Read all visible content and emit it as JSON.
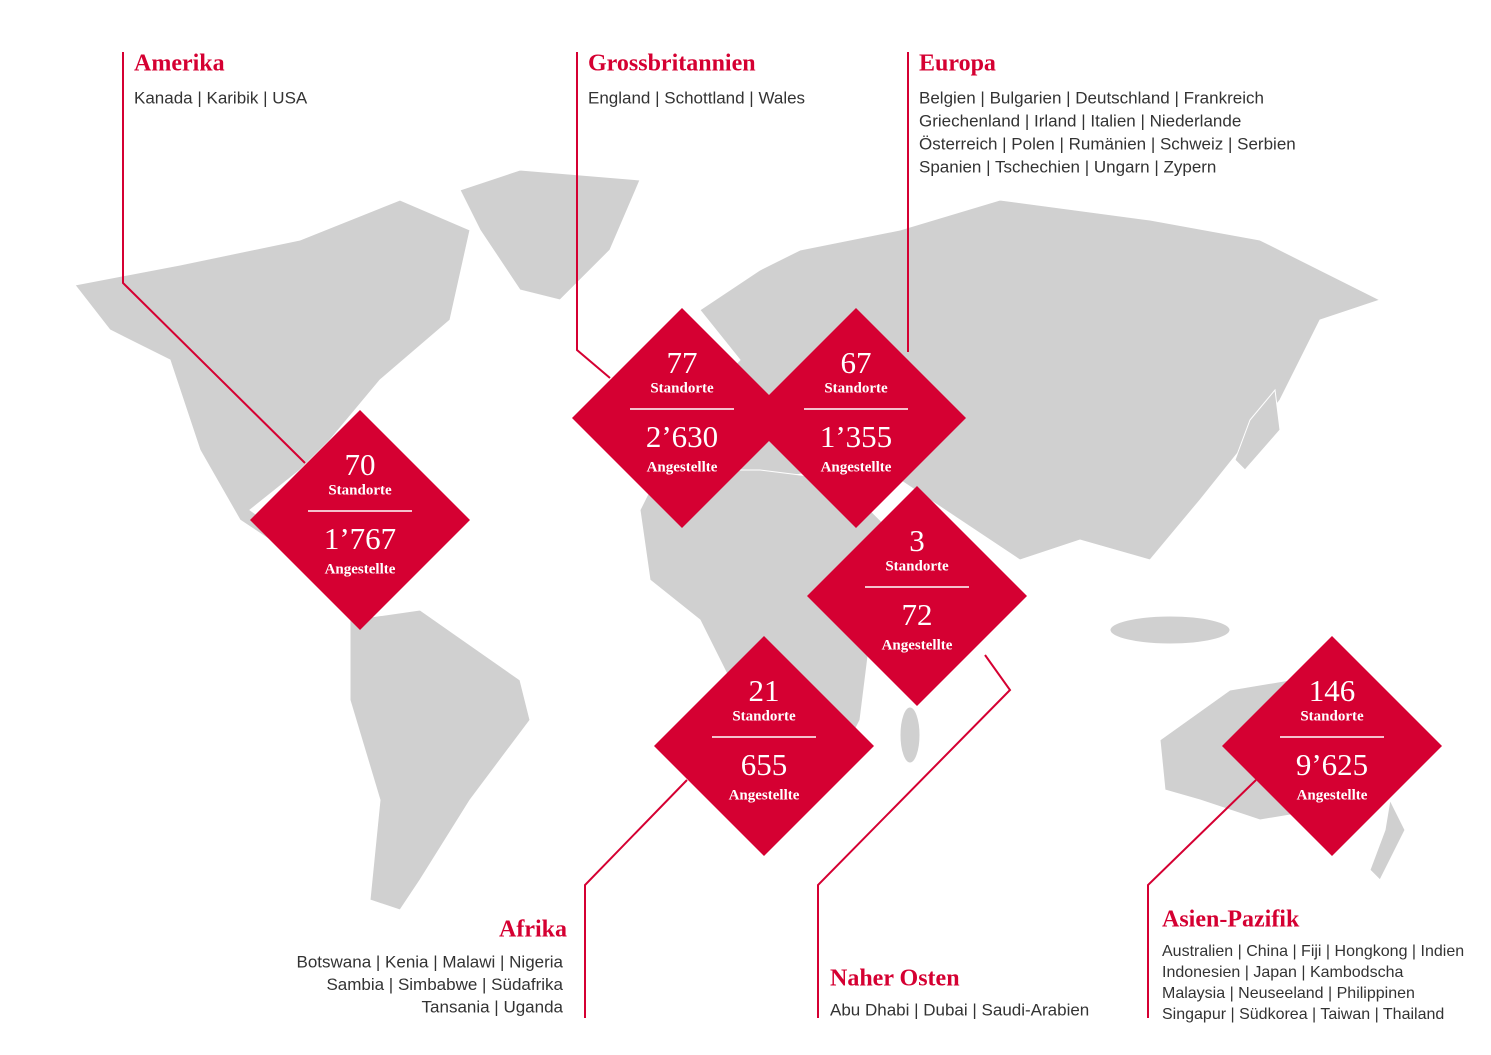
{
  "regions": [
    {
      "name": "Amerika",
      "countries": [
        "Kanada | Karibik | USA"
      ],
      "locations": "70",
      "locations_label": "Standorte",
      "employees": "1’767",
      "employees_label": "Angestellte"
    },
    {
      "name": "Grossbritannien",
      "countries": [
        "England | Schottland | Wales"
      ],
      "locations": "77",
      "locations_label": "Standorte",
      "employees": "2’630",
      "employees_label": "Angestellte"
    },
    {
      "name": "Europa",
      "countries": [
        "Belgien | Bulgarien | Deutschland | Frankreich",
        "Griechenland | Irland | Italien | Niederlande",
        "Österreich | Polen | Rumänien | Schweiz | Serbien",
        "Spanien | Tschechien | Ungarn | Zypern"
      ],
      "locations": "67",
      "locations_label": "Standorte",
      "employees": "1’355",
      "employees_label": "Angestellte"
    },
    {
      "name": "Naher Osten",
      "countries": [
        "Abu Dhabi | Dubai | Saudi-Arabien"
      ],
      "locations": "3",
      "locations_label": "Standorte",
      "employees": "72",
      "employees_label": "Angestellte"
    },
    {
      "name": "Afrika",
      "countries": [
        "Botswana | Kenia | Malawi | Nigeria",
        "Sambia | Simbabwe | Südafrika",
        "Tansania | Uganda"
      ],
      "locations": "21",
      "locations_label": "Standorte",
      "employees": "655",
      "employees_label": "Angestellte"
    },
    {
      "name": "Asien-Pazifik",
      "countries": [
        "Australien | China | Fiji | Hongkong | Indien",
        "Indonesien | Japan | Kambodscha",
        "Malaysia | Neuseeland | Philippinen",
        "Singapur | Südkorea | Taiwan | Thailand"
      ],
      "locations": "146",
      "locations_label": "Standorte",
      "employees": "9’625",
      "employees_label": "Angestellte"
    }
  ]
}
